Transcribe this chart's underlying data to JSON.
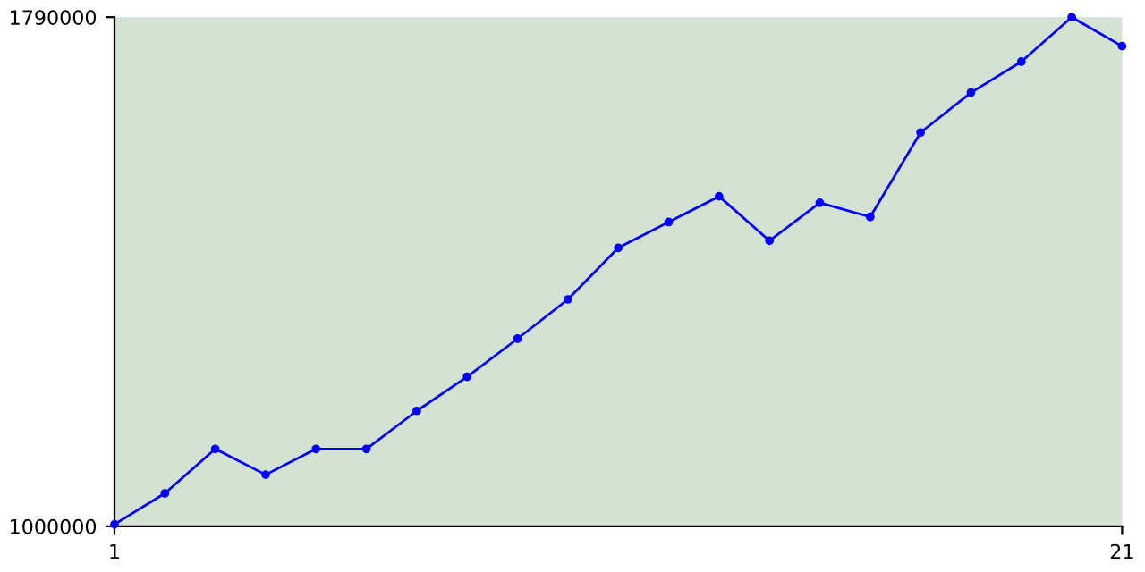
{
  "chart_data": {
    "type": "line",
    "x": [
      1,
      2,
      3,
      4,
      5,
      6,
      7,
      8,
      9,
      10,
      11,
      12,
      13,
      14,
      15,
      16,
      17,
      18,
      19,
      20,
      21
    ],
    "series": [
      {
        "color": "#0000ff",
        "values": [
          1003000,
          1051000,
          1120000,
          1080000,
          1120000,
          1120000,
          1179000,
          1232000,
          1291000,
          1352000,
          1432000,
          1472000,
          1512000,
          1443000,
          1502000,
          1480000,
          1611000,
          1673000,
          1721000,
          1790000,
          1745000
        ]
      }
    ],
    "xlim": [
      1,
      21
    ],
    "xticks": [
      1,
      21
    ],
    "ylim": [
      1000000,
      1790000
    ],
    "yticks": [
      1000000,
      1790000
    ],
    "marker": "circle",
    "line_style": "solid",
    "grid": false,
    "legend": false
  }
}
